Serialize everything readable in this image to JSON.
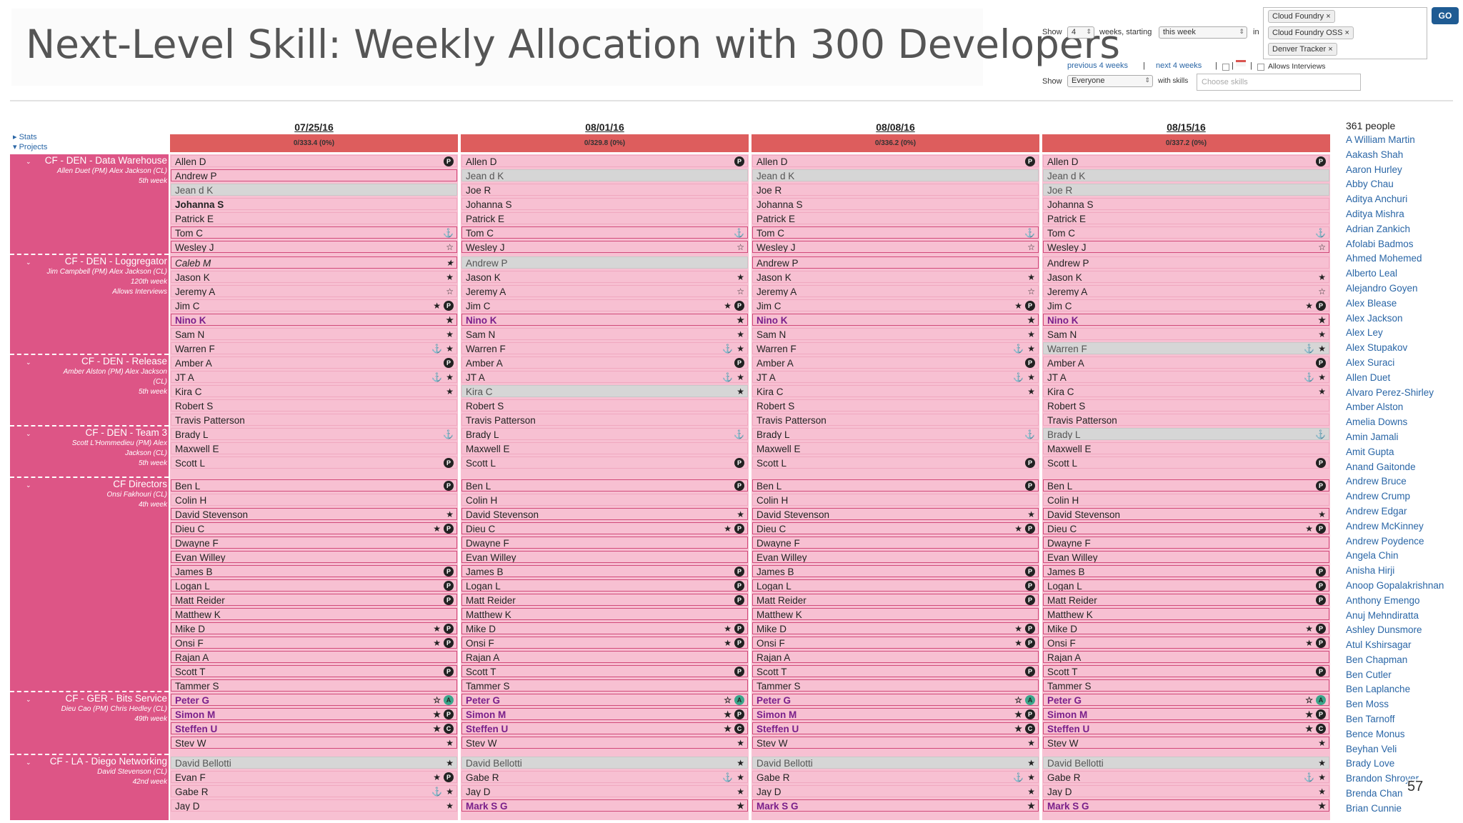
{
  "title": "Next-Level Skill: Weekly Allocation with 300 Developers",
  "controls": {
    "show_label": "Show",
    "weeks_value": "4",
    "weeks_label": "weeks, starting",
    "start_value": "this week",
    "in_label": "in",
    "tags": [
      "Cloud Foundry ×",
      "Cloud Foundry OSS ×",
      "Denver Tracker ×"
    ],
    "go_label": "GO",
    "prev_link": "previous 4 weeks",
    "sep1": "|",
    "next_link": "next 4 weeks",
    "sep2": "|",
    "sep3": "|",
    "sep4": "|",
    "allows_interviews": "Allows Interviews",
    "show2_label": "Show",
    "show2_value": "Everyone",
    "with_skills_label": "with skills",
    "skills_placeholder": "Choose skills"
  },
  "sidebar_links": {
    "stats": "▸ Stats",
    "projects": "▾ Projects"
  },
  "weeks": [
    {
      "date": "07/25/16",
      "summary": "0/333.4 (0%)"
    },
    {
      "date": "08/01/16",
      "summary": "0/329.8 (0%)"
    },
    {
      "date": "08/08/16",
      "summary": "0/336.2 (0%)"
    },
    {
      "date": "08/15/16",
      "summary": "0/337.2 (0%)"
    }
  ],
  "projects": [
    {
      "name": "CF - DEN - Data Warehouse",
      "info": [
        "Allen Duet (PM) Alex Jackson (CL)",
        "5th week"
      ],
      "collapse": "⌄"
    },
    {
      "name": "CF - DEN - Loggregator",
      "info": [
        "Jim Campbell (PM) Alex Jackson (CL)",
        "120th week",
        "Allows Interviews"
      ],
      "collapse": "⌄"
    },
    {
      "name": "CF - DEN - Release",
      "info": [
        "Amber Alston (PM) Alex Jackson",
        "(CL)",
        "5th week"
      ],
      "collapse": "⌄"
    },
    {
      "name": "CF - DEN - Team 3",
      "info": [
        "Scott L'Hommedieu (PM) Alex",
        "Jackson (CL)",
        "5th week"
      ],
      "collapse": "⌄"
    },
    {
      "name": "CF Directors",
      "info": [
        "Onsi Fakhouri (CL)",
        "4th week"
      ],
      "collapse": "⌄"
    },
    {
      "name": "CF - GER - Bits Service",
      "info": [
        "Dieu Cao (PM) Chris Hedley (CL)",
        "49th week"
      ],
      "collapse": "⌄"
    },
    {
      "name": "CF - LA - Diego Networking",
      "info": [
        "David Stevenson (CL)",
        "42nd week"
      ],
      "collapse": "⌄"
    }
  ],
  "grid": [
    [
      [
        {
          "n": "Allen D",
          "i": "P"
        },
        {
          "n": "Andrew P",
          "cls": "b"
        },
        {
          "n": "Jean d K",
          "cls": "g"
        },
        {
          "n": "Johanna S",
          "cls": "bold"
        },
        {
          "n": "Patrick E"
        },
        {
          "n": "Tom C",
          "cls": "b",
          "i": "⚓"
        },
        {
          "n": "Wesley J",
          "cls": "b",
          "i": "☆"
        },
        {
          "n": "Caleb M",
          "cls": "b",
          "it": true,
          "i": "★"
        },
        {
          "n": "Jason K",
          "i": "★"
        },
        {
          "n": "Jeremy A",
          "i": "☆"
        },
        {
          "n": "Jim C",
          "i": "★P"
        },
        {
          "n": "Nino K",
          "cls": "b bp",
          "i": "★"
        },
        {
          "n": "Sam N",
          "i": "★"
        },
        {
          "n": "Warren F",
          "i": "⚓★"
        },
        {
          "n": "Amber A",
          "i": "P"
        },
        {
          "n": "JT A",
          "i": "⚓★"
        },
        {
          "n": "Kira C",
          "i": "★"
        },
        {
          "n": "Robert S"
        },
        {
          "n": "Travis Patterson"
        },
        {
          "n": "Brady L",
          "i": "⚓"
        },
        {
          "n": "Maxwell E"
        },
        {
          "n": "Scott L",
          "i": "P"
        },
        {
          "n": "Ben L",
          "cls": "b",
          "i": "P"
        },
        {
          "n": "Colin H"
        },
        {
          "n": "David Stevenson",
          "cls": "b",
          "i": "★"
        },
        {
          "n": "Dieu C",
          "cls": "b",
          "i": "★P"
        },
        {
          "n": "Dwayne F",
          "cls": "b"
        },
        {
          "n": "Evan Willey",
          "cls": "b"
        },
        {
          "n": "James B",
          "cls": "b",
          "i": "P"
        },
        {
          "n": "Logan L",
          "cls": "b",
          "i": "P"
        },
        {
          "n": "Matt Reider",
          "cls": "b",
          "i": "P"
        },
        {
          "n": "Matthew K",
          "cls": "b"
        },
        {
          "n": "Mike D",
          "cls": "b",
          "i": "★P"
        },
        {
          "n": "Onsi F",
          "cls": "b",
          "i": "★P"
        },
        {
          "n": "Rajan A",
          "cls": "b"
        },
        {
          "n": "Scott T",
          "cls": "b",
          "i": "P"
        },
        {
          "n": "Tammer S",
          "cls": "b"
        },
        {
          "n": "Peter G",
          "cls": "b bp",
          "i": "☆A"
        },
        {
          "n": "Simon M",
          "cls": "b bp",
          "i": "★P"
        },
        {
          "n": "Steffen U",
          "cls": "b bp",
          "i": "★C"
        },
        {
          "n": "Stev W",
          "cls": "b",
          "i": "★"
        },
        {
          "n": "David Bellotti",
          "cls": "g",
          "i": "★"
        },
        {
          "n": "Evan F",
          "i": "★P"
        },
        {
          "n": "Gabe R",
          "i": "⚓★"
        },
        {
          "n": "Jay D",
          "i": "★"
        }
      ],
      [
        {
          "n": "Allen D",
          "i": "P"
        },
        {
          "n": "Jean d K",
          "cls": "g"
        },
        {
          "n": "Joe R"
        },
        {
          "n": "Johanna S"
        },
        {
          "n": "Patrick E"
        },
        {
          "n": "Tom C",
          "cls": "b",
          "i": "⚓"
        },
        {
          "n": "Wesley J",
          "cls": "b",
          "i": "☆"
        },
        {
          "n": "Andrew P",
          "cls": "g"
        },
        {
          "n": "Jason K",
          "i": "★"
        },
        {
          "n": "Jeremy A",
          "i": "☆"
        },
        {
          "n": "Jim C",
          "i": "★P"
        },
        {
          "n": "Nino K",
          "cls": "b bp",
          "i": "★"
        },
        {
          "n": "Sam N",
          "i": "★"
        },
        {
          "n": "Warren F",
          "i": "⚓★"
        },
        {
          "n": "Amber A",
          "i": "P"
        },
        {
          "n": "JT A",
          "i": "⚓★"
        },
        {
          "n": "Kira C",
          "cls": "g",
          "i": "★"
        },
        {
          "n": "Robert S"
        },
        {
          "n": "Travis Patterson"
        },
        {
          "n": "Brady L",
          "i": "⚓"
        },
        {
          "n": "Maxwell E"
        },
        {
          "n": "Scott L",
          "i": "P"
        },
        {
          "n": "Ben L",
          "cls": "b",
          "i": "P"
        },
        {
          "n": "Colin H"
        },
        {
          "n": "David Stevenson",
          "cls": "b",
          "i": "★"
        },
        {
          "n": "Dieu C",
          "cls": "b",
          "i": "★P"
        },
        {
          "n": "Dwayne F",
          "cls": "b"
        },
        {
          "n": "Evan Willey",
          "cls": "b"
        },
        {
          "n": "James B",
          "cls": "b",
          "i": "P"
        },
        {
          "n": "Logan L",
          "cls": "b",
          "i": "P"
        },
        {
          "n": "Matt Reider",
          "cls": "b",
          "i": "P"
        },
        {
          "n": "Matthew K",
          "cls": "b"
        },
        {
          "n": "Mike D",
          "cls": "b",
          "i": "★P"
        },
        {
          "n": "Onsi F",
          "cls": "b",
          "i": "★P"
        },
        {
          "n": "Rajan A",
          "cls": "b"
        },
        {
          "n": "Scott T",
          "cls": "b",
          "i": "P"
        },
        {
          "n": "Tammer S",
          "cls": "b"
        },
        {
          "n": "Peter G",
          "cls": "b bp",
          "i": "☆A"
        },
        {
          "n": "Simon M",
          "cls": "b bp",
          "i": "★P"
        },
        {
          "n": "Steffen U",
          "cls": "b bp",
          "i": "★C"
        },
        {
          "n": "Stev W",
          "cls": "b",
          "i": "★"
        },
        {
          "n": "David Bellotti",
          "cls": "g",
          "i": "★"
        },
        {
          "n": "Gabe R",
          "i": "⚓★"
        },
        {
          "n": "Jay D",
          "i": "★"
        },
        {
          "n": "Mark S G",
          "cls": "b bp",
          "i": "★"
        }
      ],
      [
        {
          "n": "Allen D",
          "i": "P"
        },
        {
          "n": "Jean d K",
          "cls": "g"
        },
        {
          "n": "Joe R"
        },
        {
          "n": "Johanna S"
        },
        {
          "n": "Patrick E"
        },
        {
          "n": "Tom C",
          "cls": "b",
          "i": "⚓"
        },
        {
          "n": "Wesley J",
          "cls": "b",
          "i": "☆"
        },
        {
          "n": "Andrew P",
          "cls": "b"
        },
        {
          "n": "Jason K",
          "i": "★"
        },
        {
          "n": "Jeremy A",
          "i": "☆"
        },
        {
          "n": "Jim C",
          "i": "★P"
        },
        {
          "n": "Nino K",
          "cls": "b bp",
          "i": "★"
        },
        {
          "n": "Sam N",
          "i": "★"
        },
        {
          "n": "Warren F",
          "i": "⚓★"
        },
        {
          "n": "Amber A",
          "i": "P"
        },
        {
          "n": "JT A",
          "i": "⚓★"
        },
        {
          "n": "Kira C",
          "i": "★"
        },
        {
          "n": "Robert S"
        },
        {
          "n": "Travis Patterson"
        },
        {
          "n": "Brady L",
          "i": "⚓"
        },
        {
          "n": "Maxwell E"
        },
        {
          "n": "Scott L",
          "i": "P"
        },
        {
          "n": "Ben L",
          "cls": "b",
          "i": "P"
        },
        {
          "n": "Colin H"
        },
        {
          "n": "David Stevenson",
          "cls": "b",
          "i": "★"
        },
        {
          "n": "Dieu C",
          "cls": "b",
          "i": "★P"
        },
        {
          "n": "Dwayne F",
          "cls": "b"
        },
        {
          "n": "Evan Willey",
          "cls": "b"
        },
        {
          "n": "James B",
          "cls": "b",
          "i": "P"
        },
        {
          "n": "Logan L",
          "cls": "b",
          "i": "P"
        },
        {
          "n": "Matt Reider",
          "cls": "b",
          "i": "P"
        },
        {
          "n": "Matthew K",
          "cls": "b"
        },
        {
          "n": "Mike D",
          "cls": "b",
          "i": "★P"
        },
        {
          "n": "Onsi F",
          "cls": "b",
          "i": "★P"
        },
        {
          "n": "Rajan A",
          "cls": "b"
        },
        {
          "n": "Scott T",
          "cls": "b",
          "i": "P"
        },
        {
          "n": "Tammer S",
          "cls": "b"
        },
        {
          "n": "Peter G",
          "cls": "b bp",
          "i": "☆A"
        },
        {
          "n": "Simon M",
          "cls": "b bp",
          "i": "★P"
        },
        {
          "n": "Steffen U",
          "cls": "b bp",
          "i": "★C"
        },
        {
          "n": "Stev W",
          "cls": "b",
          "i": "★"
        },
        {
          "n": "David Bellotti",
          "cls": "g",
          "i": "★"
        },
        {
          "n": "Gabe R",
          "i": "⚓★"
        },
        {
          "n": "Jay D",
          "i": "★"
        },
        {
          "n": "Mark S G",
          "cls": "b bp",
          "i": "★"
        }
      ],
      [
        {
          "n": "Allen D",
          "i": "P"
        },
        {
          "n": "Jean d K",
          "cls": "g"
        },
        {
          "n": "Joe R",
          "cls": "g"
        },
        {
          "n": "Johanna S"
        },
        {
          "n": "Patrick E"
        },
        {
          "n": "Tom C",
          "i": "⚓"
        },
        {
          "n": "Wesley J",
          "cls": "b",
          "i": "☆"
        },
        {
          "n": "Andrew P"
        },
        {
          "n": "Jason K",
          "i": "★"
        },
        {
          "n": "Jeremy A",
          "i": "☆"
        },
        {
          "n": "Jim C",
          "i": "★P"
        },
        {
          "n": "Nino K",
          "cls": "b bp",
          "i": "★"
        },
        {
          "n": "Sam N",
          "i": "★"
        },
        {
          "n": "Warren F",
          "cls": "g",
          "i": "⚓★"
        },
        {
          "n": "Amber A",
          "i": "P"
        },
        {
          "n": "JT A",
          "i": "⚓★"
        },
        {
          "n": "Kira C",
          "i": "★"
        },
        {
          "n": "Robert S"
        },
        {
          "n": "Travis Patterson"
        },
        {
          "n": "Brady L",
          "cls": "g",
          "i": "⚓"
        },
        {
          "n": "Maxwell E"
        },
        {
          "n": "Scott L",
          "i": "P"
        },
        {
          "n": "Ben L",
          "cls": "b",
          "i": "P"
        },
        {
          "n": "Colin H"
        },
        {
          "n": "David Stevenson",
          "cls": "b",
          "i": "★"
        },
        {
          "n": "Dieu C",
          "cls": "b",
          "i": "★P"
        },
        {
          "n": "Dwayne F",
          "cls": "b"
        },
        {
          "n": "Evan Willey",
          "cls": "b"
        },
        {
          "n": "James B",
          "cls": "b",
          "i": "P"
        },
        {
          "n": "Logan L",
          "cls": "b",
          "i": "P"
        },
        {
          "n": "Matt Reider",
          "cls": "b",
          "i": "P"
        },
        {
          "n": "Matthew K",
          "cls": "b"
        },
        {
          "n": "Mike D",
          "cls": "b",
          "i": "★P"
        },
        {
          "n": "Onsi F",
          "cls": "b",
          "i": "★P"
        },
        {
          "n": "Rajan A",
          "cls": "b"
        },
        {
          "n": "Scott T",
          "cls": "b",
          "i": "P"
        },
        {
          "n": "Tammer S",
          "cls": "b"
        },
        {
          "n": "Peter G",
          "cls": "b bp",
          "i": "☆A"
        },
        {
          "n": "Simon M",
          "cls": "b bp",
          "i": "★P"
        },
        {
          "n": "Steffen U",
          "cls": "b bp",
          "i": "★C"
        },
        {
          "n": "Stev W",
          "cls": "b",
          "i": "★"
        },
        {
          "n": "David Bellotti",
          "cls": "g",
          "i": "★"
        },
        {
          "n": "Gabe R",
          "i": "⚓★"
        },
        {
          "n": "Jay D",
          "i": "★"
        },
        {
          "n": "Mark S G",
          "cls": "b bp",
          "i": "★"
        }
      ]
    ]
  ],
  "people_count": "361 people",
  "people": [
    "A William Martin",
    "Aakash Shah",
    "Aaron Hurley",
    "Abby Chau",
    "Aditya Anchuri",
    "Aditya Mishra",
    "Adrian Zankich",
    "Afolabi Badmos",
    "Ahmed Mohemed",
    "Alberto Leal",
    "Alejandro Goyen",
    "Alex Blease",
    "Alex Jackson",
    "Alex Ley",
    "Alex Stupakov",
    "Alex Suraci",
    "Allen Duet",
    "Alvaro Perez-Shirley",
    "Amber Alston",
    "Amelia Downs",
    "Amin Jamali",
    "Amit Gupta",
    "Anand Gaitonde",
    "Andrew Bruce",
    "Andrew Crump",
    "Andrew Edgar",
    "Andrew McKinney",
    "Andrew Poydence",
    "Angela Chin",
    "Anisha Hirji",
    "Anoop Gopalakrishnan",
    "Anthony Emengo",
    "Anuj Mehndiratta",
    "Ashley Dunsmore",
    "Atul Kshirsagar",
    "Ben Chapman",
    "Ben Cutler",
    "Ben Laplanche",
    "Ben Moss",
    "Ben Tarnoff",
    "Bence Monus",
    "Beyhan Veli",
    "Brady Love",
    "Brandon Shroyer",
    "Brenda Chan",
    "Brian Cunnie"
  ],
  "page_number": "57"
}
